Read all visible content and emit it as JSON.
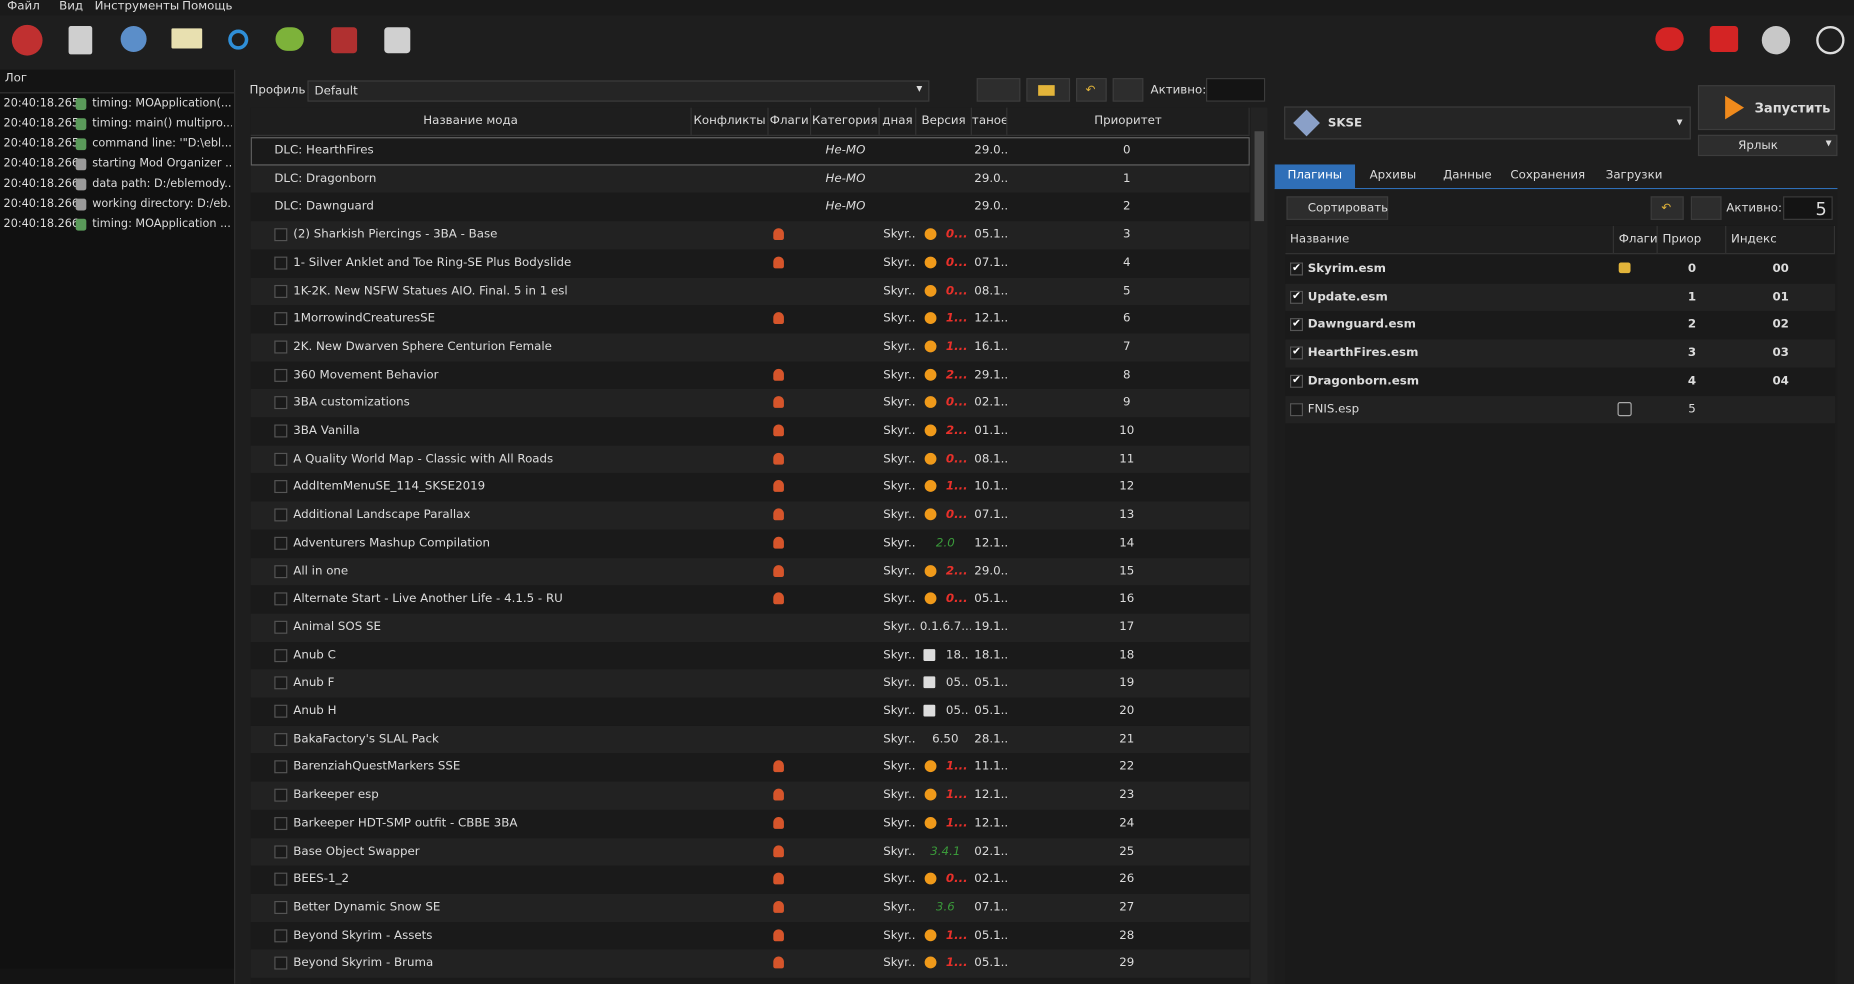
{
  "menu": [
    "Файл",
    "Вид",
    "Инструменты",
    "Помощь"
  ],
  "log": {
    "title": "Лог",
    "entries": [
      {
        "time": "20:40:18.265",
        "text": "timing: MOApplication(..."
      },
      {
        "time": "20:40:18.265",
        "text": "timing: main() multipro..."
      },
      {
        "time": "20:40:18.265",
        "text": "command line: '\"D:\\ebl..."
      },
      {
        "time": "20:40:18.266",
        "text": "starting Mod Organizer ..."
      },
      {
        "time": "20:40:18.266",
        "text": "data path: D:/eblemody..."
      },
      {
        "time": "20:40:18.266",
        "text": "working directory: D:/eb..."
      },
      {
        "time": "20:40:18.266",
        "text": "timing: MOApplication ..."
      }
    ]
  },
  "profile": {
    "label": "Профиль",
    "name": "Default",
    "active_label": "Активно:"
  },
  "mod_list": {
    "columns": [
      "Название мода",
      "Конфликты",
      "Флаги",
      "Категория",
      "дная",
      "Версия",
      "таное",
      "Приоритет"
    ],
    "rows": [
      {
        "name": "DLC: HearthFires",
        "category": "Не-МО",
        "installed": "29.0...",
        "priority": 0
      },
      {
        "name": "DLC: Dragonborn",
        "category": "Не-МО",
        "installed": "29.0...",
        "priority": 1
      },
      {
        "name": "DLC: Dawnguard",
        "category": "Не-МО",
        "installed": "29.0...",
        "priority": 2
      },
      {
        "name": "(2) Sharkish Piercings - 3BA - Base",
        "checkbox": true,
        "flag": true,
        "game": "Skyr...",
        "version": "0...",
        "version_icon": "update",
        "version_color": "#e8302a",
        "installed": "05.1...",
        "priority": 3
      },
      {
        "name": "1- Silver Anklet and Toe Ring-SE Plus Bodyslide",
        "checkbox": true,
        "flag": true,
        "game": "Skyr...",
        "version": "0...",
        "version_icon": "update",
        "version_color": "#e8302a",
        "installed": "07.1...",
        "priority": 4
      },
      {
        "name": "1K-2K. New NSFW Statues AIO. Final. 5 in 1 esl",
        "checkbox": true,
        "game": "Skyr...",
        "version": "0...",
        "version_icon": "update",
        "version_color": "#e8302a",
        "installed": "08.1...",
        "priority": 5
      },
      {
        "name": "1MorrowindCreaturesSE",
        "checkbox": true,
        "flag": true,
        "game": "Skyr...",
        "version": "1...",
        "version_icon": "update",
        "version_color": "#e8302a",
        "installed": "12.1...",
        "priority": 6
      },
      {
        "name": "2K. New Dwarven Sphere Centurion Female",
        "checkbox": true,
        "game": "Skyr...",
        "version": "1...",
        "version_icon": "update",
        "version_color": "#e8302a",
        "installed": "16.1...",
        "priority": 7
      },
      {
        "name": "360 Movement Behavior",
        "checkbox": true,
        "flag": true,
        "game": "Skyr...",
        "version": "2...",
        "version_icon": "update",
        "version_color": "#e8302a",
        "installed": "29.1...",
        "priority": 8
      },
      {
        "name": "3BA customizations",
        "checkbox": true,
        "flag": true,
        "game": "Skyr...",
        "version": "0...",
        "version_icon": "update",
        "version_color": "#e8302a",
        "installed": "02.1...",
        "priority": 9
      },
      {
        "name": "3BA Vanilla",
        "checkbox": true,
        "flag": true,
        "game": "Skyr...",
        "version": "2...",
        "version_icon": "update",
        "version_color": "#e8302a",
        "installed": "01.1...",
        "priority": 10
      },
      {
        "name": "A Quality World Map - Classic with All Roads",
        "checkbox": true,
        "flag": true,
        "game": "Skyr...",
        "version": "0...",
        "version_icon": "update",
        "version_color": "#e8302a",
        "installed": "08.1...",
        "priority": 11
      },
      {
        "name": "AddItemMenuSE_114_SKSE2019",
        "checkbox": true,
        "flag": true,
        "game": "Skyr...",
        "version": "1...",
        "version_icon": "update",
        "version_color": "#e8302a",
        "installed": "10.1...",
        "priority": 12
      },
      {
        "name": "Additional Landscape Parallax",
        "checkbox": true,
        "flag": true,
        "game": "Skyr...",
        "version": "0...",
        "version_icon": "update",
        "version_color": "#e8302a",
        "installed": "07.1...",
        "priority": 13
      },
      {
        "name": "Adventurers Mashup Compilation",
        "checkbox": true,
        "flag": true,
        "game": "Skyr...",
        "version": "2.0",
        "version_color": "#3a9a3a",
        "installed": "12.1...",
        "priority": 14
      },
      {
        "name": "All in one",
        "checkbox": true,
        "flag": true,
        "game": "Skyr...",
        "version": "2...",
        "version_icon": "update",
        "version_color": "#e8302a",
        "installed": "29.0...",
        "priority": 15
      },
      {
        "name": "Alternate Start - Live Another Life - 4.1.5 - RU",
        "checkbox": true,
        "flag": true,
        "game": "Skyr...",
        "version": "0...",
        "version_icon": "update",
        "version_color": "#e8302a",
        "installed": "05.1...",
        "priority": 16
      },
      {
        "name": "Animal SOS SE",
        "checkbox": true,
        "game": "Skyr...",
        "version": "0.1.6.7...",
        "version_color": "#d8d8d8",
        "installed": "19.1...",
        "priority": 17
      },
      {
        "name": "Anub C",
        "checkbox": true,
        "game": "Skyr...",
        "version": "18...",
        "version_icon": "note",
        "version_color": "#d8d8d8",
        "installed": "18.1...",
        "priority": 18
      },
      {
        "name": "Anub F",
        "checkbox": true,
        "game": "Skyr...",
        "version": "05...",
        "version_icon": "note",
        "version_color": "#d8d8d8",
        "installed": "05.1...",
        "priority": 19
      },
      {
        "name": "Anub H",
        "checkbox": true,
        "game": "Skyr...",
        "version": "05...",
        "version_icon": "note",
        "version_color": "#d8d8d8",
        "installed": "05.1...",
        "priority": 20
      },
      {
        "name": "BakaFactory's SLAL Pack",
        "checkbox": true,
        "game": "Skyr...",
        "version": "6.50",
        "version_color": "#d8d8d8",
        "installed": "28.1...",
        "priority": 21
      },
      {
        "name": "BarenziahQuestMarkers SSE",
        "checkbox": true,
        "flag": true,
        "game": "Skyr...",
        "version": "1...",
        "version_icon": "update",
        "version_color": "#e8302a",
        "installed": "11.1...",
        "priority": 22
      },
      {
        "name": "Barkeeper esp",
        "checkbox": true,
        "flag": true,
        "game": "Skyr...",
        "version": "1...",
        "version_icon": "update",
        "version_color": "#e8302a",
        "installed": "12.1...",
        "priority": 23
      },
      {
        "name": "Barkeeper HDT-SMP outfit - CBBE 3BA",
        "checkbox": true,
        "flag": true,
        "game": "Skyr...",
        "version": "1...",
        "version_icon": "update",
        "version_color": "#e8302a",
        "installed": "12.1...",
        "priority": 24
      },
      {
        "name": "Base Object Swapper",
        "checkbox": true,
        "flag": true,
        "game": "Skyr...",
        "version": "3.4.1",
        "version_color": "#3a9a3a",
        "installed": "02.1...",
        "priority": 25
      },
      {
        "name": "BEES-1_2",
        "checkbox": true,
        "flag": true,
        "game": "Skyr...",
        "version": "0...",
        "version_icon": "update",
        "version_color": "#e8302a",
        "installed": "02.1...",
        "priority": 26
      },
      {
        "name": "Better Dynamic Snow SE",
        "checkbox": true,
        "flag": true,
        "game": "Skyr...",
        "version": "3.6",
        "version_color": "#3a9a3a",
        "installed": "07.1...",
        "priority": 27
      },
      {
        "name": "Beyond Skyrim - Assets",
        "checkbox": true,
        "flag": true,
        "game": "Skyr...",
        "version": "1...",
        "version_icon": "update",
        "version_color": "#e8302a",
        "installed": "05.1...",
        "priority": 28
      },
      {
        "name": "Beyond Skyrim - Bruma",
        "checkbox": true,
        "flag": true,
        "game": "Skyr...",
        "version": "1...",
        "version_icon": "update",
        "version_color": "#e8302a",
        "installed": "05.1...",
        "priority": 29
      }
    ]
  },
  "executable": "SKSE",
  "run_button": "Запустить",
  "shortcut_button": "Ярлык",
  "tabs": [
    "Плагины",
    "Архивы",
    "Данные",
    "Сохранения",
    "Загрузки"
  ],
  "active_tab": 0,
  "plugins": {
    "sort_button": "Сортировать",
    "active_label": "Активно:",
    "active_count": "5",
    "columns": [
      "Название",
      "Флаги",
      "Приор",
      "Индекс"
    ],
    "rows": [
      {
        "name": "Skyrim.esm",
        "checked": true,
        "flag": true,
        "priority": 0,
        "index": "00"
      },
      {
        "name": "Update.esm",
        "checked": true,
        "priority": 1,
        "index": "01"
      },
      {
        "name": "Dawnguard.esm",
        "checked": true,
        "priority": 2,
        "index": "02"
      },
      {
        "name": "HearthFires.esm",
        "checked": true,
        "priority": 3,
        "index": "03"
      },
      {
        "name": "Dragonborn.esm",
        "checked": true,
        "priority": 4,
        "index": "04"
      },
      {
        "name": "FNIS.esp",
        "checked": false,
        "priority": 5
      }
    ]
  }
}
